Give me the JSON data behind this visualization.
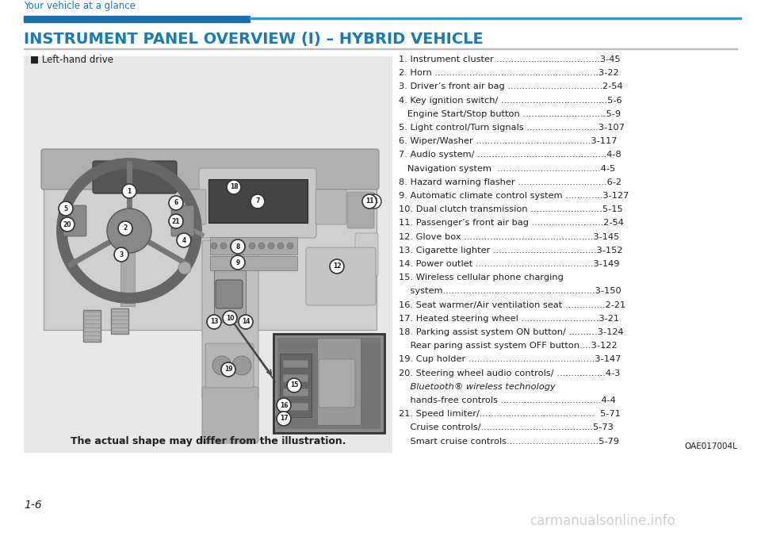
{
  "page_title": "Your vehicle at a glance",
  "section_title": "INSTRUMENT PANEL OVERVIEW (I) – HYBRID VEHICLE",
  "left_label": "■ Left-hand drive",
  "caption": "The actual shape may differ from the illustration.",
  "code": "OAE017004L",
  "page_number": "1-6",
  "watermark": "carmanualsonline.info",
  "title_color": "#1a7ab5",
  "header_bar_thick_color": "#1a7ab5",
  "header_bar_thin_color": "#1a9ad4",
  "bg_color": "#ffffff",
  "image_bg": "#e9e9e9",
  "text_color": "#231f20",
  "list_items": [
    {
      "line": "1. Instrument cluster ....................................3-45"
    },
    {
      "line": "2. Horn .........................................................3-22"
    },
    {
      "line": "3. Driver’s front air bag .................................2-54"
    },
    {
      "line": "4. Key ignition switch/ .....................................5-6"
    },
    {
      "line": "   Engine Start/Stop button .............................5-9",
      "indent": true
    },
    {
      "line": "5. Light control/Turn signals .........................3-107"
    },
    {
      "line": "6. Wiper/Washer ........................................3-117"
    },
    {
      "line": "7. Audio system/ .............................................4-8"
    },
    {
      "line": "   Navigation system  ....................................4-5",
      "indent": true
    },
    {
      "line": "8. Hazard warning flasher ...............................6-2"
    },
    {
      "line": "9. Automatic climate control system .............3-127"
    },
    {
      "line": "10. Dual clutch transmission .........................5-15"
    },
    {
      "line": "11. Passenger’s front air bag .........................2-54"
    },
    {
      "line": "12. Glove box .............................................3-145"
    },
    {
      "line": "13. Cigarette lighter ....................................3-152"
    },
    {
      "line": "14. Power outlet .........................................3-149"
    },
    {
      "line": "15. Wireless cellular phone charging"
    },
    {
      "line": "    system.....................................................3-150",
      "indent": true
    },
    {
      "line": "16. Seat warmer/Air ventilation seat ..............2-21"
    },
    {
      "line": "17. Heated steering wheel ...........................3-21"
    },
    {
      "line": "18. Parking assist system ON button/ ..........3-124"
    },
    {
      "line": "    Rear paring assist system OFF button....3-122",
      "indent": true
    },
    {
      "line": "19. Cup holder ............................................3-147"
    },
    {
      "line": "20. Steering wheel audio controls/ .................4-3"
    },
    {
      "line": "    Bluetooth® wireless technology",
      "indent": true,
      "italic": true
    },
    {
      "line": "    hands-free controls ...................................4-4",
      "indent": true
    },
    {
      "line": "21. Speed limiter/........................................  5-71"
    },
    {
      "line": "    Cruise controls/.......................................5-73",
      "indent": true
    },
    {
      "line": "    Smart cruise controls................................5-79",
      "indent": true
    }
  ]
}
